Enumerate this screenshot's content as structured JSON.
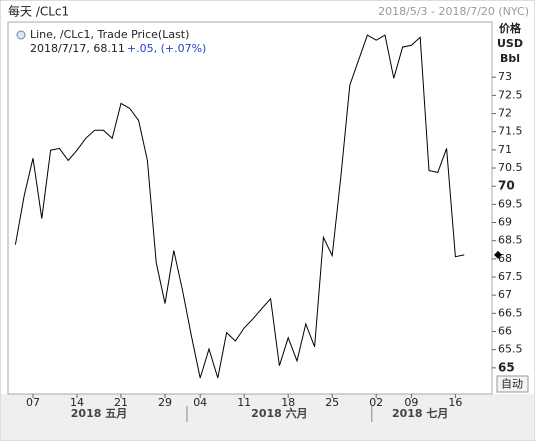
{
  "chart_data": {
    "type": "line",
    "title": "每天 /CLc1",
    "date_range": "2018/5/3 - 2018/7/20 (NYC)",
    "y_axis_label": [
      "价格",
      "USD",
      "Bbl"
    ],
    "legend_series": "Line, /CLc1, Trade Price(Last)",
    "legend_last": "2018/7/17, 68.11",
    "legend_change": "+.05, (+.07%)",
    "auto_button": "自动",
    "x": [
      "2018-05-03",
      "2018-05-04",
      "2018-05-07",
      "2018-05-08",
      "2018-05-09",
      "2018-05-10",
      "2018-05-11",
      "2018-05-14",
      "2018-05-15",
      "2018-05-16",
      "2018-05-17",
      "2018-05-18",
      "2018-05-21",
      "2018-05-22",
      "2018-05-23",
      "2018-05-24",
      "2018-05-25",
      "2018-05-29",
      "2018-05-30",
      "2018-05-31",
      "2018-06-01",
      "2018-06-04",
      "2018-06-05",
      "2018-06-06",
      "2018-06-07",
      "2018-06-08",
      "2018-06-11",
      "2018-06-12",
      "2018-06-13",
      "2018-06-14",
      "2018-06-15",
      "2018-06-18",
      "2018-06-19",
      "2018-06-20",
      "2018-06-21",
      "2018-06-22",
      "2018-06-25",
      "2018-06-26",
      "2018-06-27",
      "2018-06-28",
      "2018-06-29",
      "2018-07-02",
      "2018-07-03",
      "2018-07-05",
      "2018-07-06",
      "2018-07-09",
      "2018-07-10",
      "2018-07-11",
      "2018-07-12",
      "2018-07-13",
      "2018-07-16",
      "2018-07-17"
    ],
    "series": [
      {
        "name": "/CLc1",
        "color": "#000000",
        "values": [
          68.39,
          69.74,
          70.77,
          69.11,
          70.99,
          71.04,
          70.71,
          70.99,
          71.32,
          71.54,
          71.54,
          71.32,
          72.28,
          72.14,
          71.81,
          70.71,
          67.9,
          66.77,
          68.23,
          67.12,
          65.88,
          64.72,
          65.52,
          64.72,
          65.97,
          65.74,
          66.1,
          66.35,
          66.63,
          66.9,
          65.06,
          65.83,
          65.19,
          66.21,
          65.58,
          68.59,
          68.09,
          70.3,
          72.78,
          73.47,
          74.16,
          74.02,
          74.16,
          72.97,
          73.83,
          73.88,
          74.1,
          70.43,
          70.38,
          71.04,
          68.06,
          68.11
        ]
      }
    ],
    "months": [
      {
        "value": "2018-05",
        "label": "2018 五月"
      },
      {
        "value": "2018-06",
        "label": "2018 六月"
      },
      {
        "value": "2018-07",
        "label": "2018 七月"
      }
    ],
    "xticks": [
      {
        "value": "2018-05-07",
        "label": "07"
      },
      {
        "value": "2018-05-14",
        "label": "14"
      },
      {
        "value": "2018-05-21",
        "label": "21"
      },
      {
        "value": "2018-05-29",
        "label": "29"
      },
      {
        "value": "2018-06-04",
        "label": "04"
      },
      {
        "value": "2018-06-11",
        "label": "11"
      },
      {
        "value": "2018-06-18",
        "label": "18"
      },
      {
        "value": "2018-06-25",
        "label": "25"
      },
      {
        "value": "2018-07-02",
        "label": "02"
      },
      {
        "value": "2018-07-09",
        "label": "09"
      },
      {
        "value": "2018-07-16",
        "label": "16"
      }
    ],
    "ylim": [
      64.28,
      74.52
    ],
    "yticks": [
      65,
      65.5,
      66,
      66.5,
      67,
      67.5,
      68,
      68.5,
      69,
      69.5,
      70,
      70.5,
      71,
      71.5,
      72,
      72.5,
      73
    ],
    "grid": false
  }
}
